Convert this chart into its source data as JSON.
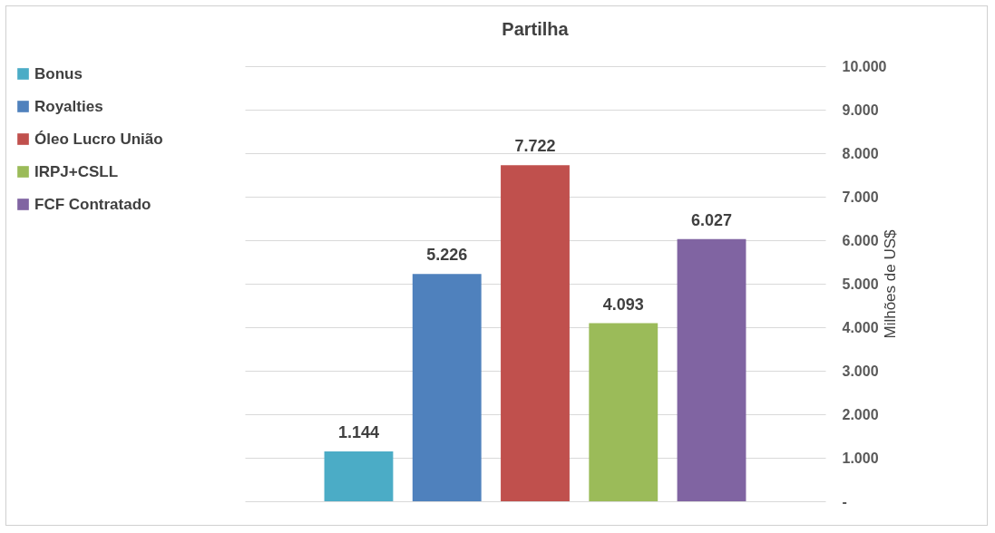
{
  "chart_data": {
    "type": "bar",
    "title": "Partilha",
    "ylabel": "Milhões de US$",
    "categories": [
      null
    ],
    "series": [
      {
        "name": "Bonus",
        "color": "#4bacc6",
        "values": [
          1144
        ],
        "value_labels": [
          "1.144"
        ]
      },
      {
        "name": "Royalties",
        "color": "#4f81bd",
        "values": [
          5226
        ],
        "value_labels": [
          "5.226"
        ]
      },
      {
        "name": "Óleo Lucro União",
        "color": "#c0504d",
        "values": [
          7722
        ],
        "value_labels": [
          "7.722"
        ]
      },
      {
        "name": "IRPJ+CSLL",
        "color": "#9bbb59",
        "values": [
          4093
        ],
        "value_labels": [
          "4.093"
        ]
      },
      {
        "name": "FCF Contratado",
        "color": "#8064a2",
        "values": [
          6027
        ],
        "value_labels": [
          "6.027"
        ]
      }
    ],
    "ylim": [
      0,
      10000
    ],
    "yticks": [
      {
        "value": 0,
        "label": "-"
      },
      {
        "value": 1000,
        "label": "1.000"
      },
      {
        "value": 2000,
        "label": "2.000"
      },
      {
        "value": 3000,
        "label": "3.000"
      },
      {
        "value": 4000,
        "label": "4.000"
      },
      {
        "value": 5000,
        "label": "5.000"
      },
      {
        "value": 6000,
        "label": "6.000"
      },
      {
        "value": 7000,
        "label": "7.000"
      },
      {
        "value": 8000,
        "label": "8.000"
      },
      {
        "value": 9000,
        "label": "9.000"
      },
      {
        "value": 10000,
        "label": "10.000"
      }
    ],
    "grid": true,
    "legend": "left"
  }
}
